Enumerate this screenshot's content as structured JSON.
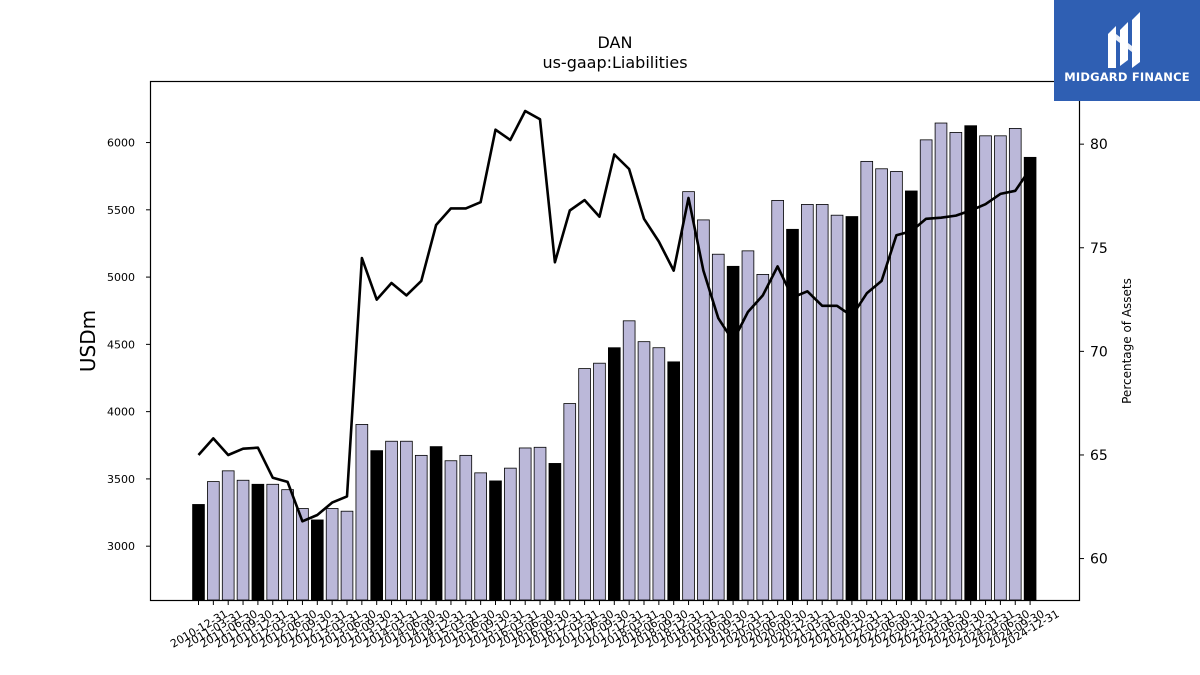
{
  "chart_data": {
    "type": "bar",
    "title": "DAN",
    "subtitle": "us-gaap:Liabilities",
    "ylabel": "USDm",
    "y2label": "Percentage of Assets",
    "ylim": [
      2600,
      6450
    ],
    "y2lim": [
      58,
      83
    ],
    "yticks": [
      "3000",
      "3500",
      "4000",
      "4500",
      "5000",
      "5500",
      "6000"
    ],
    "y2ticks": [
      "60",
      "65",
      "70",
      "75",
      "80"
    ],
    "categories": [
      "2010-12-31",
      "2011-03-31",
      "2011-06-30",
      "2011-09-30",
      "2011-12-31",
      "2012-03-31",
      "2012-06-30",
      "2012-09-30",
      "2012-12-31",
      "2013-03-31",
      "2013-06-30",
      "2013-09-30",
      "2013-12-31",
      "2014-03-31",
      "2014-06-30",
      "2014-09-30",
      "2014-12-31",
      "2015-03-31",
      "2015-06-30",
      "2015-09-30",
      "2015-12-31",
      "2016-03-31",
      "2016-06-30",
      "2016-09-30",
      "2016-12-31",
      "2017-03-31",
      "2017-06-30",
      "2017-09-30",
      "2017-12-31",
      "2018-03-31",
      "2018-06-30",
      "2018-09-30",
      "2018-12-31",
      "2019-03-31",
      "2019-06-30",
      "2019-09-30",
      "2019-12-31",
      "2020-03-31",
      "2020-06-30",
      "2020-09-30",
      "2020-12-31",
      "2021-03-31",
      "2021-06-30",
      "2021-09-30",
      "2021-12-31",
      "2022-03-31",
      "2022-06-30",
      "2022-09-30",
      "2022-12-31",
      "2023-03-31",
      "2023-06-30",
      "2023-09-30",
      "2023-12-31",
      "2024-03-31",
      "2024-06-30",
      "2024-09-30",
      "2024-12-31"
    ],
    "series": [
      {
        "kind": "bar",
        "values": [
          3310,
          3480,
          3560,
          3490,
          3460,
          3460,
          3420,
          3280,
          3195,
          3280,
          3260,
          3905,
          3710,
          3780,
          3780,
          3675,
          3740,
          3635,
          3675,
          3545,
          3485,
          3580,
          3730,
          3735,
          3615,
          4060,
          4320,
          4360,
          4475,
          4675,
          4520,
          4475,
          4370,
          5635,
          5425,
          5170,
          5080,
          5195,
          5020,
          5570,
          5355,
          5540,
          5540,
          5460,
          5450,
          5860,
          5805,
          5785,
          5640,
          6020,
          6145,
          6075,
          6125,
          6050,
          6050,
          6105,
          5890
        ]
      },
      {
        "kind": "line",
        "axis": "right",
        "values": [
          65.0,
          65.8,
          65.0,
          65.3,
          65.35,
          63.9,
          63.7,
          61.8,
          62.1,
          62.7,
          63.0,
          74.5,
          72.5,
          73.3,
          72.7,
          73.4,
          76.1,
          76.9,
          76.9,
          77.2,
          80.7,
          80.2,
          81.6,
          81.2,
          74.3,
          76.8,
          77.3,
          76.5,
          79.5,
          78.8,
          76.4,
          75.3,
          73.9,
          77.4,
          73.9,
          71.6,
          70.5,
          71.9,
          72.7,
          74.1,
          72.6,
          72.9,
          72.2,
          72.2,
          71.7,
          72.8,
          73.4,
          75.6,
          75.8,
          76.4,
          76.45,
          76.55,
          76.8,
          77.1,
          77.6,
          77.75,
          78.8
        ]
      }
    ],
    "colors": {
      "year_end_bar": "#000000",
      "bar": "#bbb8d9",
      "bar_edge": "#000000",
      "line": "#000000"
    }
  },
  "logo": {
    "text": "MIDGARD FINANCE",
    "background": "#2f5fb3"
  }
}
